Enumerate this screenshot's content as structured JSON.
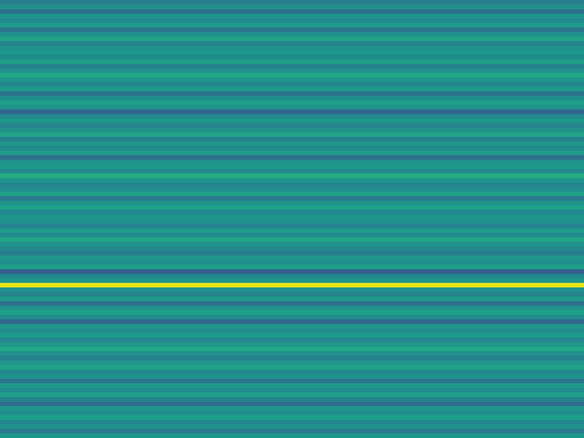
{
  "chart_data": {
    "type": "heatmap",
    "color": "viridis",
    "tick_labels": false,
    "color_range": [
      0,
      1
    ],
    "cells": [
      [
        0.42
      ],
      [
        0.5
      ],
      [
        0.36
      ],
      [
        0.52
      ],
      [
        0.47
      ],
      [
        0.55
      ],
      [
        0.4
      ],
      [
        0.49
      ],
      [
        0.58
      ],
      [
        0.45
      ],
      [
        0.51
      ],
      [
        0.53
      ],
      [
        0.48
      ],
      [
        0.56
      ],
      [
        0.44
      ],
      [
        0.5
      ],
      [
        0.6
      ],
      [
        0.52
      ],
      [
        0.46
      ],
      [
        0.54
      ],
      [
        0.38
      ],
      [
        0.49
      ],
      [
        0.57
      ],
      [
        0.51
      ],
      [
        0.33
      ],
      [
        0.47
      ],
      [
        0.53
      ],
      [
        0.45
      ],
      [
        0.5
      ],
      [
        0.58
      ],
      [
        0.43
      ],
      [
        0.52
      ],
      [
        0.48
      ],
      [
        0.55
      ],
      [
        0.36
      ],
      [
        0.5
      ],
      [
        0.54
      ],
      [
        0.47
      ],
      [
        0.61
      ],
      [
        0.52
      ],
      [
        0.45
      ],
      [
        0.49
      ],
      [
        0.56
      ],
      [
        0.4
      ],
      [
        0.51
      ],
      [
        0.57
      ],
      [
        0.46
      ],
      [
        0.53
      ],
      [
        0.5
      ],
      [
        0.44
      ],
      [
        0.55
      ],
      [
        0.48
      ],
      [
        0.59
      ],
      [
        0.51
      ],
      [
        0.47
      ],
      [
        0.42
      ],
      [
        0.53
      ],
      [
        0.49
      ],
      [
        0.56
      ],
      [
        0.3
      ],
      [
        0.46
      ],
      [
        0.52
      ],
      [
        0.96
      ],
      [
        0.5
      ],
      [
        0.45
      ],
      [
        0.54
      ],
      [
        0.37
      ],
      [
        0.51
      ],
      [
        0.57
      ],
      [
        0.48
      ],
      [
        0.33
      ],
      [
        0.52
      ],
      [
        0.49
      ],
      [
        0.55
      ],
      [
        0.46
      ],
      [
        0.53
      ],
      [
        0.6
      ],
      [
        0.5
      ],
      [
        0.44
      ],
      [
        0.52
      ],
      [
        0.58
      ],
      [
        0.47
      ],
      [
        0.51
      ],
      [
        0.39
      ],
      [
        0.54
      ],
      [
        0.48
      ],
      [
        0.56
      ],
      [
        0.45
      ],
      [
        0.35
      ],
      [
        0.52
      ],
      [
        0.49
      ],
      [
        0.57
      ],
      [
        0.46
      ],
      [
        0.51
      ],
      [
        0.41
      ],
      [
        0.53
      ]
    ]
  }
}
